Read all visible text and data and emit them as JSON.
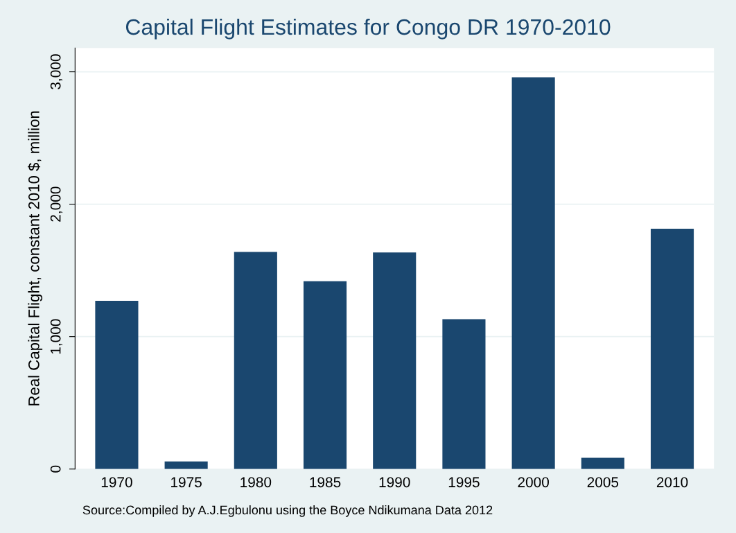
{
  "chart_data": {
    "type": "bar",
    "title": "Capital Flight Estimates for Congo DR 1970-2010",
    "ylabel": "Real Capital Flight, constant 2010 $, million",
    "categories": [
      "1970",
      "1975",
      "1980",
      "1985",
      "1990",
      "1995",
      "2000",
      "2005",
      "2010"
    ],
    "values": [
      1270,
      58,
      1640,
      1418,
      1635,
      1132,
      2958,
      85,
      1815
    ],
    "color": "#1a476f",
    "ylim": [
      0,
      3180
    ],
    "yticks": [
      {
        "value": 0,
        "label": "0"
      },
      {
        "value": 1000,
        "label": "1,000"
      },
      {
        "value": 2000,
        "label": "2,000"
      },
      {
        "value": 3000,
        "label": "3,000"
      }
    ],
    "grid": "y",
    "annotations": [
      "Source:Compiled by A.J.Egbulonu using the Boyce Ndikumana Data 2012"
    ]
  }
}
